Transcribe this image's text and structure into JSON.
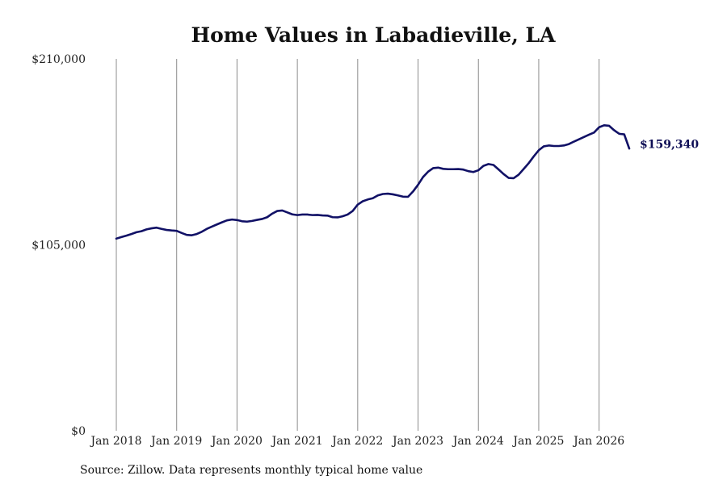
{
  "chart_data": {
    "type": "line",
    "title": "Home Values in Labadieville, LA",
    "xlabel": "",
    "ylabel": "",
    "ylim": [
      0,
      210000
    ],
    "y_ticks": [
      0,
      105000,
      210000
    ],
    "y_tick_labels": [
      "$0",
      "$105,000",
      "$210,000"
    ],
    "x_tick_labels": [
      "Jan 2018",
      "Jan 2019",
      "Jan 2020",
      "Jan 2021",
      "Jan 2022",
      "Jan 2023",
      "Jan 2024",
      "Jan 2025",
      "Jan 2026"
    ],
    "x_range": [
      "2018-01",
      "2026-07"
    ],
    "grid": {
      "vertical": true,
      "horizontal": false
    },
    "legend": "none",
    "line_color": "#111166",
    "series": [
      {
        "x": [
          "2018-01",
          "2018-02",
          "2018-03",
          "2018-04",
          "2018-05",
          "2018-06",
          "2018-07",
          "2018-08",
          "2018-09",
          "2018-10",
          "2018-11",
          "2018-12",
          "2019-01",
          "2019-02",
          "2019-03",
          "2019-04",
          "2019-05",
          "2019-06",
          "2019-07",
          "2019-08",
          "2019-09",
          "2019-10",
          "2019-11",
          "2019-12",
          "2020-01",
          "2020-02",
          "2020-03",
          "2020-04",
          "2020-05",
          "2020-06",
          "2020-07",
          "2020-08",
          "2020-09",
          "2020-10",
          "2020-11",
          "2020-12",
          "2021-01",
          "2021-02",
          "2021-03",
          "2021-04",
          "2021-05",
          "2021-06",
          "2021-07",
          "2021-08",
          "2021-09",
          "2021-10",
          "2021-11",
          "2021-12",
          "2022-01",
          "2022-02",
          "2022-03",
          "2022-04",
          "2022-05",
          "2022-06",
          "2022-07",
          "2022-08",
          "2022-09",
          "2022-10",
          "2022-11",
          "2022-12",
          "2023-01",
          "2023-02",
          "2023-03",
          "2023-04",
          "2023-05",
          "2023-06",
          "2023-07",
          "2023-08",
          "2023-09",
          "2023-10",
          "2023-11",
          "2023-12",
          "2024-01",
          "2024-02",
          "2024-03",
          "2024-04",
          "2024-05",
          "2024-06",
          "2024-07",
          "2024-08",
          "2024-09",
          "2024-10",
          "2024-11",
          "2024-12",
          "2025-01",
          "2025-02",
          "2025-03",
          "2025-04",
          "2025-05",
          "2025-06",
          "2025-07",
          "2025-08",
          "2025-09",
          "2025-10",
          "2025-11",
          "2025-12",
          "2026-01",
          "2026-02",
          "2026-03",
          "2026-04",
          "2026-05",
          "2026-06",
          "2026-07"
        ],
        "values": [
          108500,
          109400,
          110200,
          111100,
          112100,
          112700,
          113700,
          114300,
          114700,
          114000,
          113400,
          113100,
          112900,
          111700,
          110600,
          110400,
          111100,
          112400,
          114000,
          115300,
          116500,
          117700,
          118800,
          119300,
          119000,
          118300,
          118100,
          118500,
          119100,
          119600,
          120600,
          122600,
          124100,
          124400,
          123300,
          122200,
          121800,
          122100,
          122100,
          121800,
          121900,
          121600,
          121500,
          120600,
          120500,
          121100,
          122100,
          124100,
          127700,
          129600,
          130600,
          131300,
          132900,
          133700,
          133900,
          133500,
          132900,
          132200,
          132100,
          135100,
          138900,
          143300,
          146300,
          148300,
          148600,
          147900,
          147700,
          147700,
          147800,
          147500,
          146600,
          146100,
          147100,
          149600,
          150600,
          150100,
          147600,
          145000,
          142800,
          142600,
          144600,
          147800,
          151100,
          154900,
          158400,
          160600,
          161100,
          160800,
          160800,
          161100,
          161900,
          163300,
          164600,
          165900,
          167200,
          168400,
          171400,
          172500,
          172200,
          169700,
          167700,
          167400,
          159340
        ],
        "end_label": "$159,340"
      }
    ]
  },
  "source": {
    "text": "Source: Zillow. Data represents monthly typical home value"
  }
}
